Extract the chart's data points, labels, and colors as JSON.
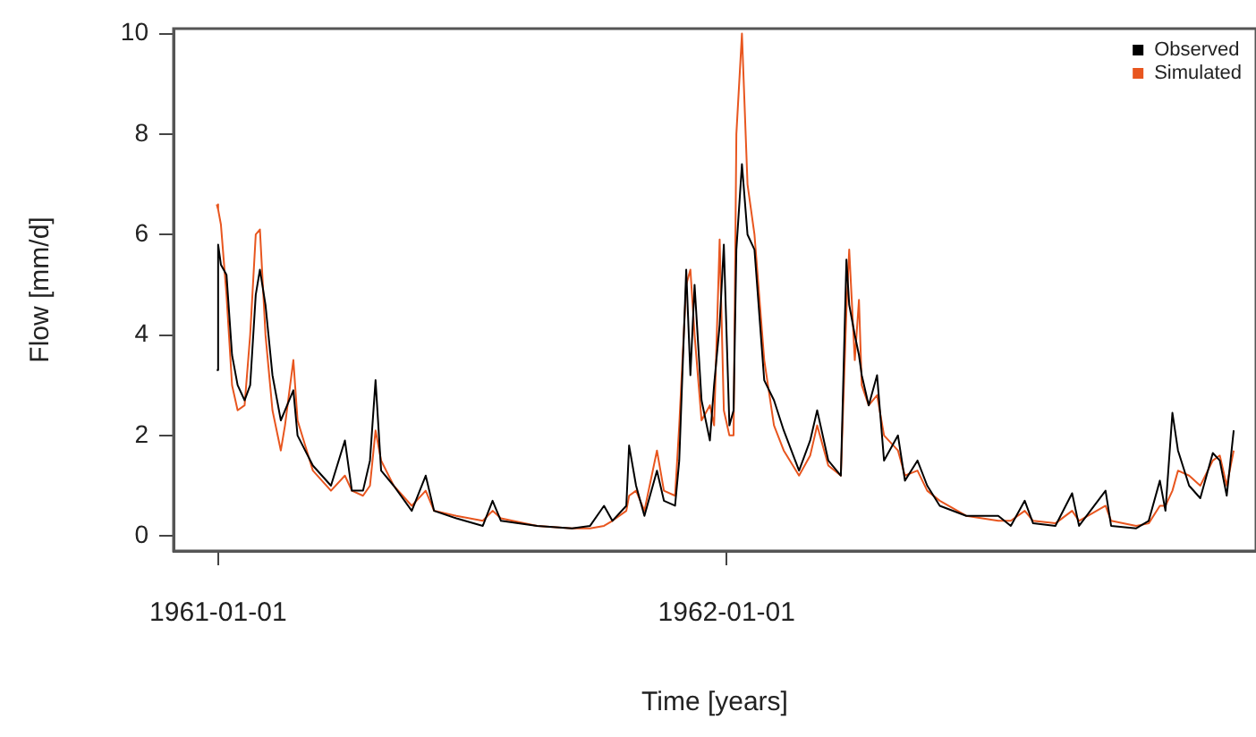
{
  "chart_data": {
    "type": "line",
    "xlabel": "Time [years]",
    "ylabel": "Flow [mm/d]",
    "x": [
      "1960-12-31",
      "1961-01-01",
      "1961-01-03",
      "1961-01-07",
      "1961-01-11",
      "1961-01-15",
      "1961-01-20",
      "1961-01-24",
      "1961-01-28",
      "1961-01-31",
      "1961-02-04",
      "1961-02-09",
      "1961-02-15",
      "1961-02-18",
      "1961-02-24",
      "1961-02-27",
      "1961-03-10",
      "1961-03-23",
      "1961-04-02",
      "1961-04-07",
      "1961-04-15",
      "1961-04-20",
      "1961-04-24",
      "1961-04-28",
      "1961-05-07",
      "1961-05-20",
      "1961-05-30",
      "1961-06-05",
      "1961-06-21",
      "1961-07-10",
      "1961-07-17",
      "1961-07-23",
      "1961-08-18",
      "1961-09-12",
      "1961-09-25",
      "1961-10-05",
      "1961-10-11",
      "1961-10-21",
      "1961-10-23",
      "1961-10-28",
      "1961-11-03",
      "1961-11-12",
      "1961-11-17",
      "1961-11-25",
      "1961-11-28",
      "1961-12-03",
      "1961-12-06",
      "1961-12-09",
      "1961-12-14",
      "1961-12-20",
      "1961-12-23",
      "1961-12-27",
      "1961-12-30",
      "1962-01-03",
      "1962-01-06",
      "1962-01-08",
      "1962-01-12",
      "1962-01-16",
      "1962-01-21",
      "1962-01-28",
      "1962-02-04",
      "1962-02-11",
      "1962-02-22",
      "1962-03-02",
      "1962-03-07",
      "1962-03-15",
      "1962-03-24",
      "1962-03-28",
      "1962-03-30",
      "1962-04-03",
      "1962-04-06",
      "1962-04-08",
      "1962-04-13",
      "1962-04-19",
      "1962-04-24",
      "1962-05-04",
      "1962-05-09",
      "1962-05-18",
      "1962-05-25",
      "1962-06-03",
      "1962-06-22",
      "1962-07-15",
      "1962-07-24",
      "1962-08-03",
      "1962-08-09",
      "1962-08-25",
      "1962-09-06",
      "1962-09-11",
      "1962-09-30",
      "1962-10-04",
      "1962-10-22",
      "1962-10-31",
      "1962-11-08",
      "1962-11-12",
      "1962-11-17",
      "1962-11-21",
      "1962-11-29",
      "1962-12-07",
      "1962-12-16",
      "1962-12-21",
      "1962-12-26",
      "1962-12-31"
    ],
    "series": [
      {
        "name": "Observed",
        "color": "#000000",
        "values": [
          3.3,
          5.8,
          5.4,
          5.2,
          3.6,
          3.0,
          2.7,
          3.0,
          4.8,
          5.3,
          4.6,
          3.2,
          2.3,
          2.5,
          2.9,
          2.0,
          1.4,
          1.0,
          1.9,
          0.9,
          0.9,
          1.5,
          3.1,
          1.3,
          1.0,
          0.5,
          1.2,
          0.5,
          0.35,
          0.2,
          0.7,
          0.3,
          0.2,
          0.15,
          0.2,
          0.6,
          0.3,
          0.6,
          1.8,
          1.0,
          0.4,
          1.3,
          0.7,
          0.6,
          1.5,
          5.3,
          3.2,
          5.0,
          2.7,
          1.9,
          3.0,
          4.2,
          5.8,
          2.2,
          2.5,
          5.7,
          7.4,
          6.0,
          5.7,
          3.1,
          2.7,
          2.1,
          1.3,
          1.9,
          2.5,
          1.5,
          1.2,
          5.5,
          4.6,
          4.0,
          3.6,
          3.2,
          2.6,
          3.2,
          1.5,
          2.0,
          1.1,
          1.5,
          1.0,
          0.6,
          0.4,
          0.4,
          0.2,
          0.7,
          0.25,
          0.2,
          0.85,
          0.2,
          0.9,
          0.2,
          0.15,
          0.3,
          1.1,
          0.5,
          2.45,
          1.7,
          1.0,
          0.75,
          1.65,
          1.5,
          0.8,
          2.1
        ]
      },
      {
        "name": "Simulated",
        "color": "#e8561f",
        "values": [
          6.6,
          6.5,
          6.2,
          4.8,
          3.0,
          2.5,
          2.6,
          4.0,
          6.0,
          6.1,
          4.0,
          2.5,
          1.7,
          2.2,
          3.5,
          2.3,
          1.3,
          0.9,
          1.2,
          0.9,
          0.8,
          1.0,
          2.1,
          1.5,
          1.0,
          0.6,
          0.9,
          0.5,
          0.4,
          0.3,
          0.5,
          0.35,
          0.2,
          0.15,
          0.15,
          0.2,
          0.3,
          0.5,
          0.8,
          0.9,
          0.5,
          1.7,
          0.9,
          0.8,
          2.2,
          5.0,
          5.3,
          4.0,
          2.3,
          2.6,
          2.2,
          5.9,
          2.5,
          2.0,
          2.0,
          8.0,
          10,
          7.0,
          6.0,
          3.5,
          2.2,
          1.7,
          1.2,
          1.6,
          2.2,
          1.4,
          1.2,
          4.5,
          5.7,
          3.5,
          4.7,
          3.0,
          2.6,
          2.8,
          2.0,
          1.7,
          1.2,
          1.3,
          0.9,
          0.7,
          0.4,
          0.3,
          0.3,
          0.5,
          0.3,
          0.25,
          0.5,
          0.3,
          0.6,
          0.3,
          0.2,
          0.25,
          0.6,
          0.6,
          0.9,
          1.3,
          1.2,
          1.0,
          1.5,
          1.6,
          1.0,
          1.7
        ]
      }
    ],
    "xlim": [
      "1960-11-30",
      "1963-01-16"
    ],
    "xticks": [
      "1961-01-01",
      "1962-01-01"
    ],
    "ylim": [
      -0.3,
      10.1
    ],
    "yticks": [
      0,
      2,
      4,
      6,
      8,
      10
    ],
    "grid": false,
    "legend": "top right",
    "marker": "none",
    "line_style": "solid"
  }
}
